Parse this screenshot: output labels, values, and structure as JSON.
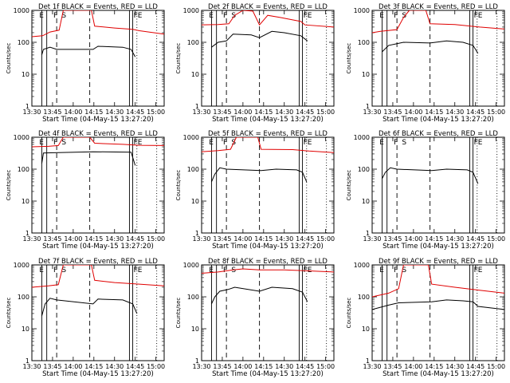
{
  "figure": {
    "ylabel": "Counts/sec",
    "xlabel": "Start Time (04-May-15 13:27:20)",
    "x_ticks": [
      "13:30",
      "13:45",
      "14:00",
      "14:15",
      "14:30",
      "14:45",
      "15:00"
    ],
    "y_ticks": [
      "1",
      "10",
      "100",
      "1000"
    ],
    "line_colors": {
      "events": "#000000",
      "lld": "#e00000"
    }
  },
  "chart_data": [
    {
      "type": "line",
      "title": "Det 1f BLACK = Events, RED = LLD",
      "markers": [
        "E",
        "F",
        "S",
        "F",
        "E"
      ],
      "xlabel": "Start Time (04-May-15 13:27:20)",
      "ylabel": "Counts/sec",
      "ylim": [
        1,
        1000
      ],
      "yscale": "log",
      "series": [
        {
          "color": "#e00000",
          "points": [
            [
              13.5,
              150
            ],
            [
              13.63,
              160
            ],
            [
              13.72,
              210
            ],
            [
              13.83,
              240
            ],
            [
              13.88,
              1000
            ],
            [
              14.22,
              1000
            ],
            [
              14.26,
              320
            ],
            [
              14.5,
              280
            ],
            [
              14.72,
              255
            ],
            [
              14.8,
              230
            ],
            [
              15.1,
              180
            ]
          ]
        },
        {
          "color": "#000000",
          "points": [
            [
              13.62,
              40
            ],
            [
              13.64,
              60
            ],
            [
              13.72,
              70
            ],
            [
              13.8,
              60
            ],
            [
              14.24,
              60
            ],
            [
              14.3,
              75
            ],
            [
              14.6,
              70
            ],
            [
              14.7,
              60
            ],
            [
              14.75,
              35
            ]
          ]
        }
      ]
    },
    {
      "type": "line",
      "title": "Det 2f BLACK = Events, RED = LLD",
      "markers": [
        "E",
        "F",
        "S",
        "F",
        "E"
      ],
      "xlabel": "Start Time (04-May-15 13:27:20)",
      "ylabel": "Counts/sec",
      "ylim": [
        1,
        1000
      ],
      "yscale": "log",
      "series": [
        {
          "color": "#e00000",
          "points": [
            [
              13.5,
              350
            ],
            [
              13.7,
              360
            ],
            [
              13.83,
              380
            ],
            [
              13.9,
              700
            ],
            [
              14.0,
              1000
            ],
            [
              14.12,
              950
            ],
            [
              14.2,
              350
            ],
            [
              14.3,
              700
            ],
            [
              14.45,
              600
            ],
            [
              14.7,
              450
            ],
            [
              14.75,
              350
            ],
            [
              15.1,
              300
            ]
          ]
        },
        {
          "color": "#000000",
          "points": [
            [
              13.62,
              70
            ],
            [
              13.7,
              100
            ],
            [
              13.8,
              110
            ],
            [
              13.88,
              180
            ],
            [
              14.1,
              170
            ],
            [
              14.2,
              140
            ],
            [
              14.35,
              220
            ],
            [
              14.5,
              200
            ],
            [
              14.7,
              160
            ],
            [
              14.78,
              110
            ]
          ]
        }
      ]
    },
    {
      "type": "line",
      "title": "Det 3f BLACK = Events, RED = LLD",
      "markers": [
        "E",
        "F",
        "S",
        "F",
        "E"
      ],
      "xlabel": "Start Time (04-May-15 13:27:20)",
      "ylabel": "Counts/sec",
      "ylim": [
        1,
        1000
      ],
      "yscale": "log",
      "series": [
        {
          "color": "#e00000",
          "points": [
            [
              13.5,
              200
            ],
            [
              13.6,
              220
            ],
            [
              13.8,
              250
            ],
            [
              13.88,
              600
            ],
            [
              13.95,
              1000
            ],
            [
              14.15,
              1000
            ],
            [
              14.2,
              380
            ],
            [
              14.5,
              360
            ],
            [
              14.8,
              300
            ],
            [
              15.1,
              260
            ]
          ]
        },
        {
          "color": "#000000",
          "points": [
            [
              13.62,
              50
            ],
            [
              13.7,
              80
            ],
            [
              13.8,
              90
            ],
            [
              13.88,
              100
            ],
            [
              14.2,
              95
            ],
            [
              14.4,
              110
            ],
            [
              14.6,
              100
            ],
            [
              14.72,
              80
            ],
            [
              14.78,
              45
            ]
          ]
        }
      ]
    },
    {
      "type": "line",
      "title": "Det 4f BLACK = Events, RED = LLD",
      "markers": [
        "E",
        "F",
        "S",
        "F",
        "E"
      ],
      "xlabel": "Start Time (04-May-15 13:27:20)",
      "ylabel": "Counts/sec",
      "ylim": [
        1,
        1000
      ],
      "yscale": "log",
      "series": [
        {
          "color": "#e00000",
          "points": [
            [
              13.5,
              500
            ],
            [
              13.7,
              520
            ],
            [
              13.82,
              550
            ],
            [
              13.88,
              1000
            ],
            [
              14.2,
              1000
            ],
            [
              14.26,
              650
            ],
            [
              14.6,
              600
            ],
            [
              14.8,
              560
            ],
            [
              15.1,
              550
            ]
          ]
        },
        {
          "color": "#000000",
          "points": [
            [
              13.62,
              150
            ],
            [
              13.64,
              320
            ],
            [
              13.82,
              330
            ],
            [
              14.24,
              350
            ],
            [
              14.7,
              340
            ],
            [
              14.75,
              130
            ]
          ]
        }
      ]
    },
    {
      "type": "line",
      "title": "Det 5f BLACK = Events, RED = LLD",
      "markers": [
        "E",
        "F",
        "S",
        "F",
        "E"
      ],
      "xlabel": "Start Time (04-May-15 13:27:20)",
      "ylabel": "Counts/sec",
      "ylim": [
        1,
        1000
      ],
      "yscale": "log",
      "series": [
        {
          "color": "#e00000",
          "points": [
            [
              13.5,
              350
            ],
            [
              13.7,
              380
            ],
            [
              13.85,
              420
            ],
            [
              13.92,
              1000
            ],
            [
              14.18,
              1000
            ],
            [
              14.22,
              420
            ],
            [
              14.6,
              410
            ],
            [
              14.8,
              370
            ],
            [
              15.1,
              330
            ]
          ]
        },
        {
          "color": "#000000",
          "points": [
            [
              13.62,
              40
            ],
            [
              13.66,
              70
            ],
            [
              13.72,
              110
            ],
            [
              13.8,
              100
            ],
            [
              14.22,
              90
            ],
            [
              14.4,
              100
            ],
            [
              14.65,
              95
            ],
            [
              14.72,
              80
            ],
            [
              14.77,
              40
            ]
          ]
        }
      ]
    },
    {
      "type": "line",
      "title": "Det 6f BLACK = Events, RED = LLD",
      "markers": [
        "E",
        "F",
        "S",
        "F",
        "E"
      ],
      "xlabel": "Start Time (04-May-15 13:27:20)",
      "ylabel": "Counts/sec",
      "ylim": [
        1,
        1000
      ],
      "yscale": "log",
      "series": [
        {
          "color": "#000000",
          "points": [
            [
              13.62,
              50
            ],
            [
              13.66,
              80
            ],
            [
              13.72,
              110
            ],
            [
              13.8,
              100
            ],
            [
              14.22,
              90
            ],
            [
              14.4,
              100
            ],
            [
              14.65,
              95
            ],
            [
              14.72,
              80
            ],
            [
              14.78,
              35
            ]
          ]
        }
      ]
    },
    {
      "type": "line",
      "title": "Det 7f BLACK = Events, RED = LLD",
      "markers": [
        "E",
        "F",
        "S",
        "F",
        "E"
      ],
      "xlabel": "Start Time (04-May-15 13:27:20)",
      "ylabel": "Counts/sec",
      "ylim": [
        1,
        1000
      ],
      "yscale": "log",
      "series": [
        {
          "color": "#e00000",
          "points": [
            [
              13.5,
              200
            ],
            [
              13.7,
              220
            ],
            [
              13.82,
              240
            ],
            [
              13.88,
              1000
            ],
            [
              14.22,
              1000
            ],
            [
              14.26,
              330
            ],
            [
              14.5,
              280
            ],
            [
              14.8,
              250
            ],
            [
              15.1,
              220
            ]
          ]
        },
        {
          "color": "#000000",
          "points": [
            [
              13.62,
              25
            ],
            [
              13.66,
              60
            ],
            [
              13.72,
              90
            ],
            [
              13.8,
              80
            ],
            [
              14.24,
              60
            ],
            [
              14.3,
              85
            ],
            [
              14.6,
              80
            ],
            [
              14.72,
              60
            ],
            [
              14.77,
              30
            ]
          ]
        }
      ]
    },
    {
      "type": "line",
      "title": "Det 8f BLACK = Events, RED = LLD",
      "markers": [
        "E",
        "F",
        "S",
        "F",
        "E"
      ],
      "xlabel": "Start Time (04-May-15 13:27:20)",
      "ylabel": "Counts/sec",
      "ylim": [
        1,
        1000
      ],
      "yscale": "log",
      "series": [
        {
          "color": "#e00000",
          "points": [
            [
              13.5,
              550
            ],
            [
              13.7,
              600
            ],
            [
              13.88,
              700
            ],
            [
              14.0,
              750
            ],
            [
              14.2,
              700
            ],
            [
              14.5,
              700
            ],
            [
              14.8,
              650
            ],
            [
              15.1,
              600
            ]
          ]
        },
        {
          "color": "#000000",
          "points": [
            [
              13.62,
              60
            ],
            [
              13.66,
              100
            ],
            [
              13.72,
              150
            ],
            [
              13.82,
              170
            ],
            [
              13.9,
              200
            ],
            [
              14.2,
              150
            ],
            [
              14.35,
              200
            ],
            [
              14.6,
              180
            ],
            [
              14.72,
              140
            ],
            [
              14.78,
              70
            ]
          ]
        }
      ]
    },
    {
      "type": "line",
      "title": "Det 9f BLACK = Events, RED = LLD",
      "markers": [
        "E",
        "F",
        "S",
        "F",
        "E"
      ],
      "xlabel": "Start Time (04-May-15 13:27:20)",
      "ylabel": "Counts/sec",
      "ylim": [
        1,
        1000
      ],
      "yscale": "log",
      "series": [
        {
          "color": "#e00000",
          "points": [
            [
              13.5,
              100
            ],
            [
              13.7,
              130
            ],
            [
              13.82,
              180
            ],
            [
              13.88,
              1000
            ],
            [
              14.18,
              1000
            ],
            [
              14.22,
              250
            ],
            [
              14.5,
              200
            ],
            [
              14.8,
              160
            ],
            [
              15.1,
              130
            ]
          ]
        },
        {
          "color": "#000000",
          "points": [
            [
              13.5,
              40
            ],
            [
              13.7,
              55
            ],
            [
              13.82,
              65
            ],
            [
              14.22,
              70
            ],
            [
              14.4,
              80
            ],
            [
              14.6,
              75
            ],
            [
              14.72,
              70
            ],
            [
              14.78,
              50
            ],
            [
              15.1,
              40
            ]
          ]
        }
      ]
    }
  ]
}
